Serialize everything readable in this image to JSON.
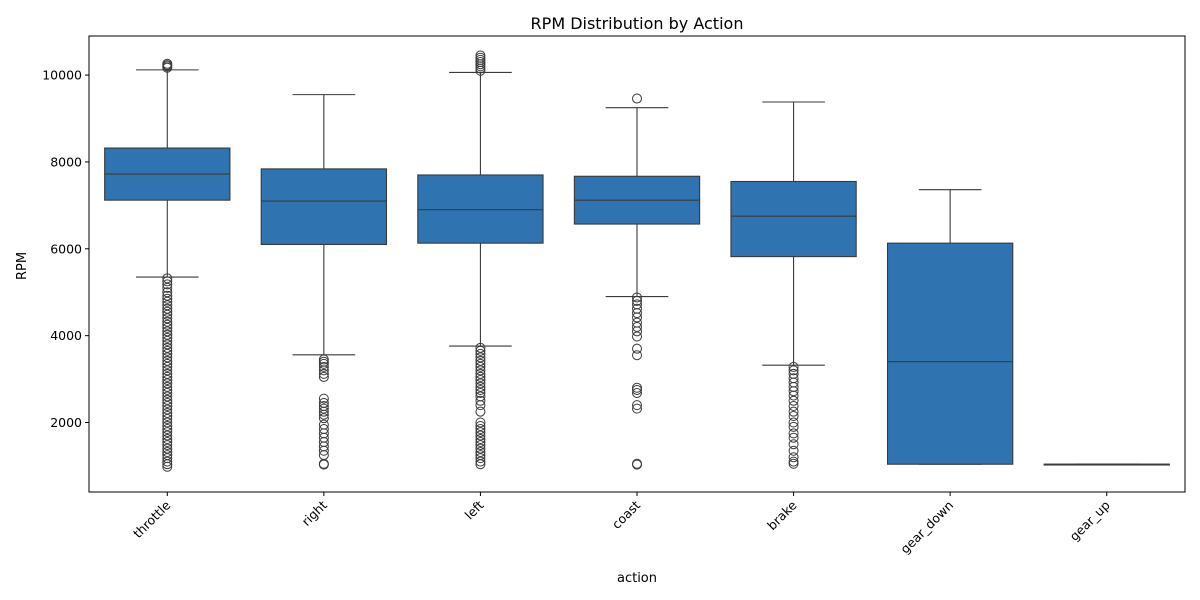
{
  "chart_data": {
    "type": "box",
    "title": "RPM Distribution by Action",
    "xlabel": "action",
    "ylabel": "RPM",
    "ylim": [
      400,
      10900
    ],
    "yticks": [
      2000,
      4000,
      6000,
      8000,
      10000
    ],
    "grid": false,
    "legend": "none",
    "box_color": "#2f74b0",
    "categories": [
      "throttle",
      "right",
      "left",
      "coast",
      "brake",
      "gear_down",
      "gear_up"
    ],
    "boxes": [
      {
        "category": "throttle",
        "whisker_low": 5350,
        "q1": 7120,
        "median": 7720,
        "q3": 8320,
        "whisker_high": 10120,
        "outliers": [
          10170,
          10200,
          10230,
          10260,
          5320,
          5250,
          5180,
          5100,
          5000,
          4920,
          4850,
          4780,
          4700,
          4620,
          4550,
          4480,
          4400,
          4320,
          4250,
          4180,
          4100,
          4020,
          3950,
          3880,
          3800,
          3720,
          3650,
          3580,
          3500,
          3420,
          3350,
          3280,
          3200,
          3120,
          3050,
          2980,
          2900,
          2820,
          2750,
          2680,
          2600,
          2520,
          2450,
          2380,
          2300,
          2220,
          2150,
          2080,
          2000,
          1920,
          1850,
          1780,
          1700,
          1620,
          1550,
          1480,
          1400,
          1320,
          1250,
          1180,
          1100,
          1040,
          980
        ]
      },
      {
        "category": "right",
        "whisker_low": 3560,
        "q1": 6100,
        "median": 7100,
        "q3": 7840,
        "whisker_high": 9550,
        "outliers": [
          3450,
          3400,
          3350,
          3280,
          3200,
          3120,
          3050,
          2550,
          2450,
          2380,
          2320,
          2250,
          2180,
          2100,
          1950,
          1850,
          1750,
          1650,
          1550,
          1450,
          1350,
          1250,
          1050,
          1030
        ]
      },
      {
        "category": "left",
        "whisker_low": 3760,
        "q1": 6130,
        "median": 6900,
        "q3": 7700,
        "whisker_high": 10060,
        "outliers": [
          10100,
          10150,
          10200,
          10250,
          10300,
          10350,
          10400,
          10450,
          3720,
          3650,
          3580,
          3500,
          3420,
          3350,
          3280,
          3200,
          3120,
          3050,
          2980,
          2900,
          2820,
          2750,
          2680,
          2600,
          2500,
          2400,
          2250,
          2000,
          1920,
          1850,
          1780,
          1700,
          1620,
          1550,
          1480,
          1400,
          1320,
          1250,
          1180,
          1100,
          1040
        ]
      },
      {
        "category": "coast",
        "whisker_low": 4900,
        "q1": 6570,
        "median": 7120,
        "q3": 7670,
        "whisker_high": 9250,
        "outliers": [
          9460,
          4880,
          4800,
          4720,
          4620,
          4520,
          4420,
          4300,
          4200,
          4100,
          3980,
          3700,
          3550,
          2800,
          2750,
          2680,
          2400,
          2320,
          1050,
          1030
        ]
      },
      {
        "category": "brake",
        "whisker_low": 3320,
        "q1": 5820,
        "median": 6750,
        "q3": 7550,
        "whisker_high": 9380,
        "outliers": [
          3280,
          3200,
          3120,
          3020,
          2920,
          2820,
          2720,
          2620,
          2500,
          2380,
          2250,
          2150,
          2000,
          1900,
          1750,
          1650,
          1500,
          1350,
          1200,
          1100,
          1050
        ]
      },
      {
        "category": "gear_down",
        "whisker_low": 1040,
        "q1": 1040,
        "median": 3400,
        "q3": 6130,
        "whisker_high": 7360,
        "outliers": []
      },
      {
        "category": "gear_up",
        "whisker_low": 1040,
        "q1": 1040,
        "median": 1040,
        "q3": 1040,
        "whisker_high": 1040,
        "outliers": []
      }
    ]
  }
}
